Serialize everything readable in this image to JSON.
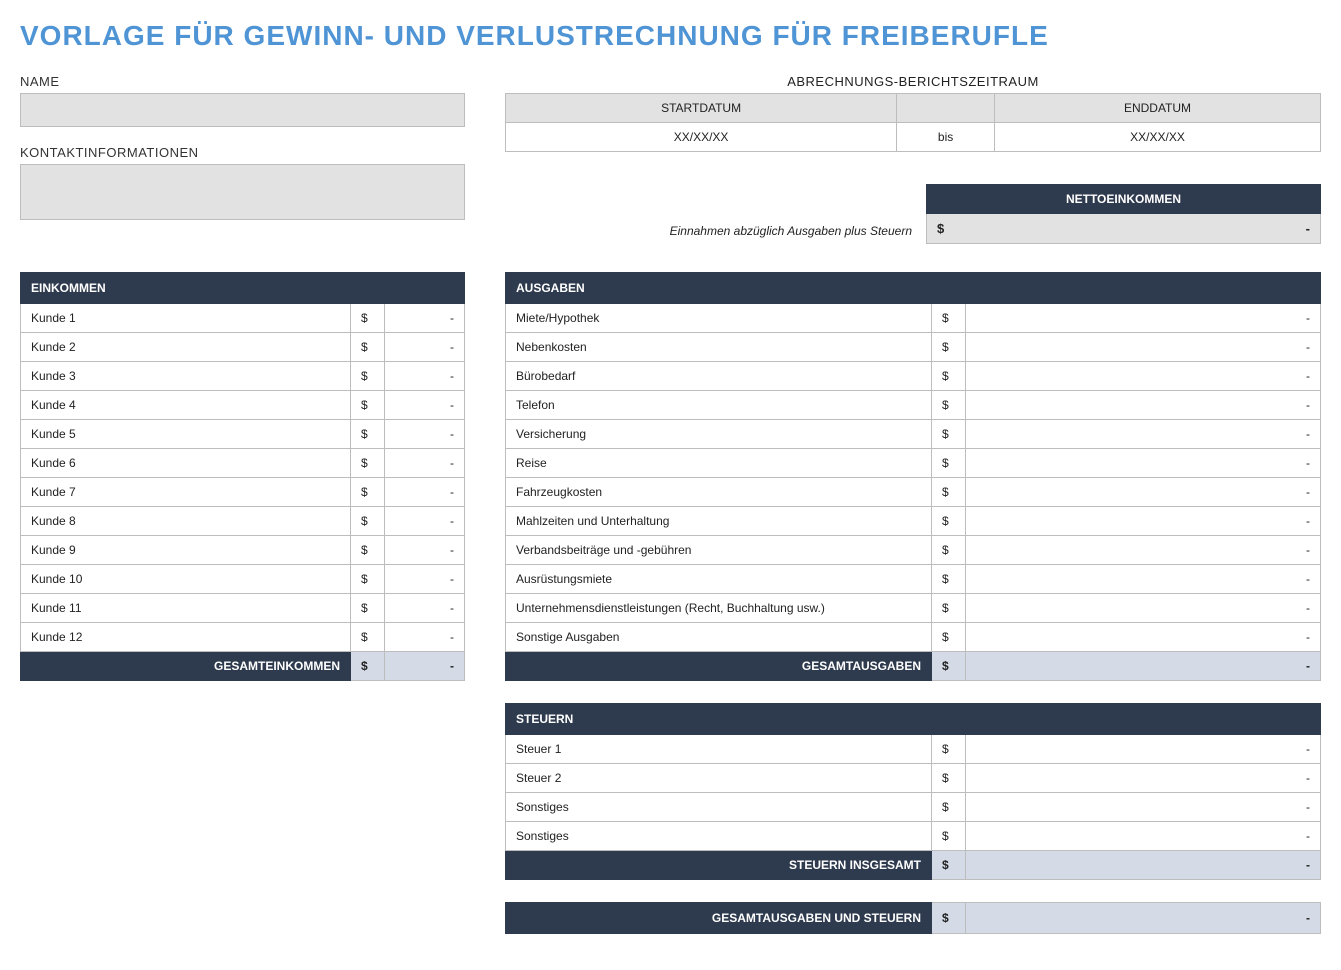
{
  "title": "VORLAGE FÜR GEWINN- UND VERLUSTRECHNUNG FÜR FREIBERUFLE",
  "labels": {
    "name": "NAME",
    "contact": "KONTAKTINFORMATIONEN",
    "period": "ABRECHNUNGS-BERICHTSZEITRAUM",
    "start_date": "STARTDATUM",
    "end_date": "ENDDATUM",
    "to": "bis",
    "net_income": "NETTOEINKOMMEN",
    "net_note": "Einnahmen abzüglich Ausgaben plus Steuern",
    "income": "EINKOMMEN",
    "expenses": "AUSGABEN",
    "taxes": "STEUERN",
    "total_income": "GESAMTEINKOMMEN",
    "total_expenses": "GESAMTAUSGABEN",
    "total_taxes": "STEUERN INSGESAMT",
    "grand_total": "GESAMTAUSGABEN UND STEUERN"
  },
  "fields": {
    "name_value": "",
    "contact_value": "",
    "start_date_value": "XX/XX/XX",
    "end_date_value": "XX/XX/XX"
  },
  "currency": "$",
  "dash": "-",
  "income_rows": [
    {
      "label": "Kunde 1",
      "value": "-"
    },
    {
      "label": "Kunde 2",
      "value": "-"
    },
    {
      "label": "Kunde 3",
      "value": "-"
    },
    {
      "label": "Kunde 4",
      "value": "-"
    },
    {
      "label": "Kunde 5",
      "value": "-"
    },
    {
      "label": "Kunde 6",
      "value": "-"
    },
    {
      "label": "Kunde 7",
      "value": "-"
    },
    {
      "label": "Kunde 8",
      "value": "-"
    },
    {
      "label": "Kunde 9",
      "value": "-"
    },
    {
      "label": "Kunde 10",
      "value": "-"
    },
    {
      "label": "Kunde 11",
      "value": "-"
    },
    {
      "label": "Kunde 12",
      "value": "-"
    }
  ],
  "expense_rows": [
    {
      "label": "Miete/Hypothek",
      "value": "-"
    },
    {
      "label": "Nebenkosten",
      "value": "-"
    },
    {
      "label": "Bürobedarf",
      "value": "-"
    },
    {
      "label": "Telefon",
      "value": "-"
    },
    {
      "label": "Versicherung",
      "value": "-"
    },
    {
      "label": "Reise",
      "value": "-"
    },
    {
      "label": "Fahrzeugkosten",
      "value": "-"
    },
    {
      "label": "Mahlzeiten und Unterhaltung",
      "value": "-"
    },
    {
      "label": "Verbandsbeiträge und -gebühren",
      "value": "-"
    },
    {
      "label": "Ausrüstungsmiete",
      "value": "-"
    },
    {
      "label": "Unternehmensdienstleistungen (Recht, Buchhaltung usw.)",
      "value": "-"
    },
    {
      "label": "Sonstige Ausgaben",
      "value": "-"
    }
  ],
  "tax_rows": [
    {
      "label": "Steuer 1",
      "value": "-"
    },
    {
      "label": "Steuer 2",
      "value": "-"
    },
    {
      "label": "Sonstiges",
      "value": "-"
    },
    {
      "label": "Sonstiges",
      "value": "-"
    }
  ],
  "totals": {
    "income": "-",
    "expenses": "-",
    "taxes": "-",
    "grand": "-",
    "net": "-"
  },
  "colors": {
    "title": "#4f94d4",
    "dark_header": "#2e3a4d",
    "light_fill": "#e2e2e2",
    "total_fill": "#d4dae6",
    "border": "#bdbdbd"
  }
}
